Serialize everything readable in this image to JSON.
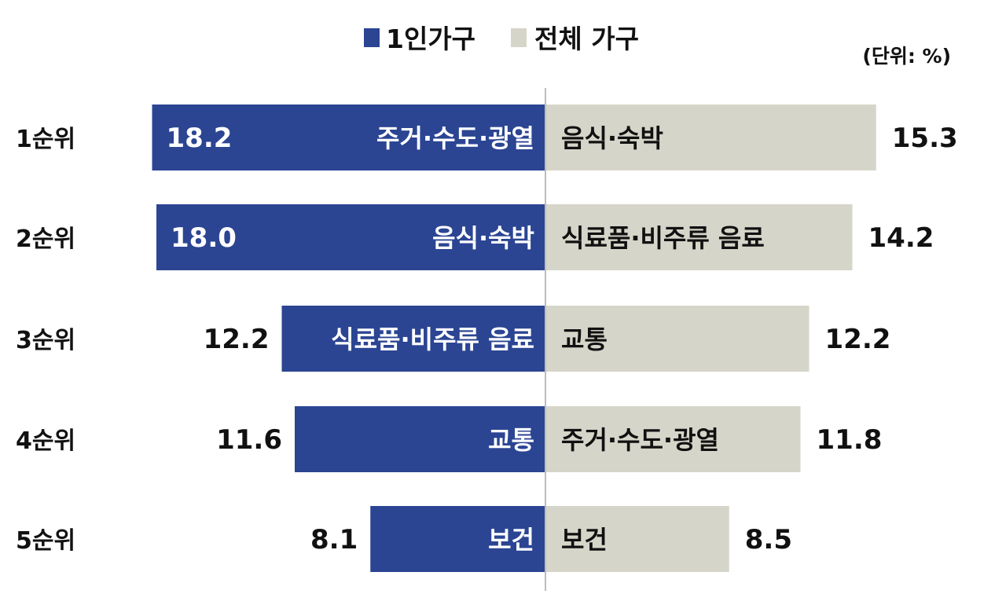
{
  "legend": {
    "single_label": "1인가구",
    "total_label": "전체 가구"
  },
  "unit_label": "(단위: %)",
  "colors": {
    "single": "#2b4593",
    "total": "#d6d5c9",
    "text_dark": "#111111",
    "text_light": "#ffffff",
    "divider": "#bdbdbd"
  },
  "chart_data": {
    "type": "bar",
    "orientation": "horizontal-diverging",
    "unit": "%",
    "categories": [
      "1순위",
      "2순위",
      "3순위",
      "4순위",
      "5순위"
    ],
    "series": [
      {
        "name": "1인가구",
        "values": [
          18.2,
          18.0,
          12.2,
          11.6,
          8.1
        ],
        "value_labels": [
          "18.2",
          "18.0",
          "12.2",
          "11.6",
          "8.1"
        ],
        "item_labels": [
          "주거·수도·광열",
          "음식·숙박",
          "식료품·비주류 음료",
          "교통",
          "보건"
        ]
      },
      {
        "name": "전체 가구",
        "values": [
          15.3,
          14.2,
          12.2,
          11.8,
          8.5
        ],
        "value_labels": [
          "15.3",
          "14.2",
          "12.2",
          "11.8",
          "8.5"
        ],
        "item_labels": [
          "음식·숙박",
          "식료품·비주류 음료",
          "교통",
          "주거·수도·광열",
          "보건"
        ]
      }
    ]
  }
}
